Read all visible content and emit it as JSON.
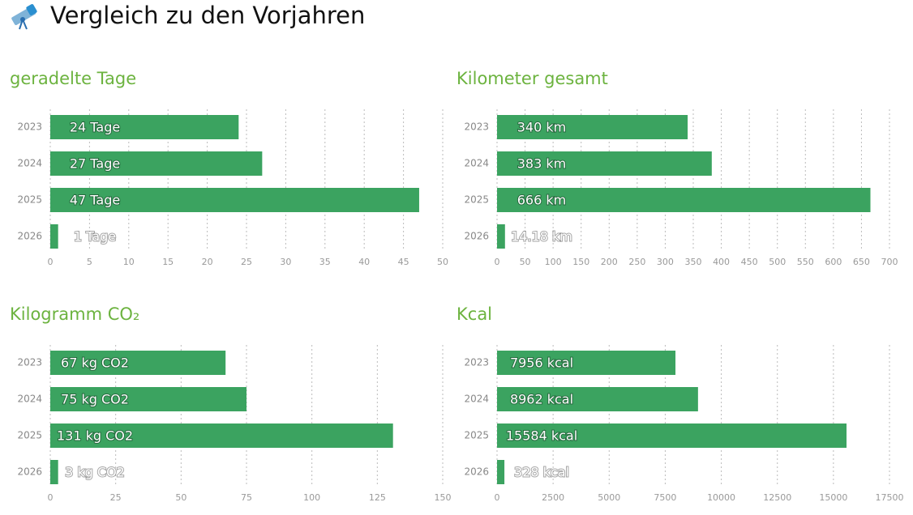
{
  "page_title": "Vergleich zu den Vorjahren",
  "chart_data": [
    {
      "type": "bar",
      "orientation": "horizontal",
      "title": "geradelte Tage",
      "color": "#3ba360",
      "categories": [
        "2023",
        "2024",
        "2025",
        "2026"
      ],
      "values": [
        24,
        27,
        47,
        1
      ],
      "value_labels": [
        "24 Tage",
        "27 Tage",
        "47 Tage",
        "1 Tage"
      ],
      "xlim": [
        0,
        50
      ],
      "xticks": [
        0,
        5,
        10,
        15,
        20,
        25,
        30,
        35,
        40,
        45,
        50
      ],
      "grid": true
    },
    {
      "type": "bar",
      "orientation": "horizontal",
      "title": "Kilometer gesamt",
      "color": "#3ba360",
      "categories": [
        "2023",
        "2024",
        "2025",
        "2026"
      ],
      "values": [
        340,
        383,
        666,
        14.18
      ],
      "value_labels": [
        "340 km",
        "383 km",
        "666 km",
        "14.18 km"
      ],
      "xlim": [
        0,
        700
      ],
      "xticks": [
        0,
        50,
        100,
        150,
        200,
        250,
        300,
        350,
        400,
        450,
        500,
        550,
        600,
        650,
        700
      ],
      "grid": true
    },
    {
      "type": "bar",
      "orientation": "horizontal",
      "title": "Kilogramm CO₂",
      "color": "#3ba360",
      "categories": [
        "2023",
        "2024",
        "2025",
        "2026"
      ],
      "values": [
        67,
        75,
        131,
        3
      ],
      "value_labels": [
        "67 kg CO2",
        "75 kg CO2",
        "131 kg CO2",
        "3 kg CO2"
      ],
      "xlim": [
        0,
        150
      ],
      "xticks": [
        0,
        25,
        50,
        75,
        100,
        125,
        150
      ],
      "grid": true
    },
    {
      "type": "bar",
      "orientation": "horizontal",
      "title": "Kcal",
      "color": "#3ba360",
      "categories": [
        "2023",
        "2024",
        "2025",
        "2026"
      ],
      "values": [
        7956,
        8962,
        15584,
        328
      ],
      "value_labels": [
        "7956 kcal",
        "8962 kcal",
        "15584 kcal",
        "328 kcal"
      ],
      "xlim": [
        0,
        17500
      ],
      "xticks": [
        0,
        2500,
        5000,
        7500,
        10000,
        12500,
        15000,
        17500
      ],
      "grid": true
    }
  ]
}
